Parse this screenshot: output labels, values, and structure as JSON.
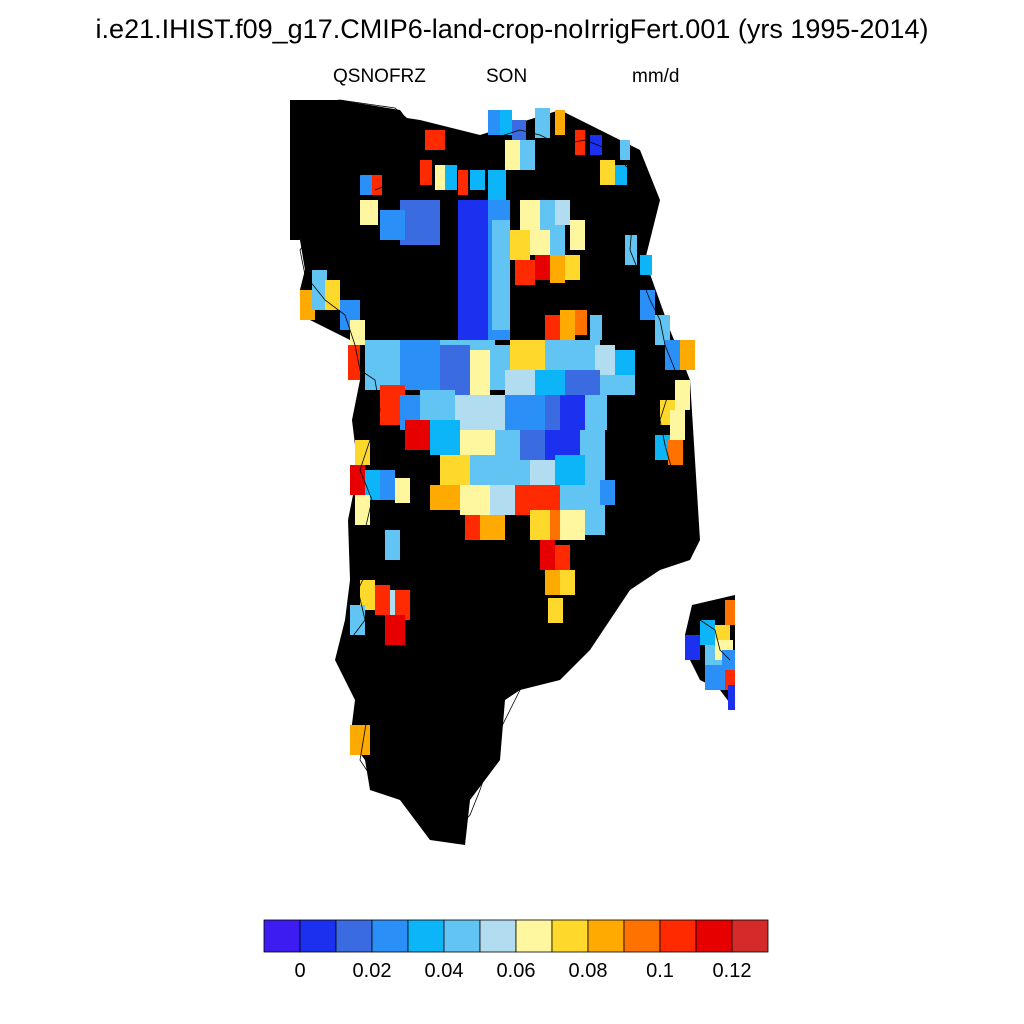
{
  "title": "i.e21.IHIST.f09_g17.CMIP6-land-crop-noIrrigFert.001 (yrs 1995-2014)",
  "variable": "QSNOFRZ",
  "season": "SON",
  "units": "mm/d",
  "colorbar": {
    "colors": [
      "#3c1cf0",
      "#1c30f0",
      "#3b6be0",
      "#2b8ff8",
      "#0cb4f8",
      "#62c4f2",
      "#b2dcf0",
      "#fff6a0",
      "#ffd82c",
      "#ffaa00",
      "#ff7200",
      "#ff2a00",
      "#e60000",
      "#d42a2a"
    ],
    "tick_labels": [
      "0",
      "0.02",
      "0.04",
      "0.06",
      "0.08",
      "0.1",
      "0.12"
    ]
  }
}
